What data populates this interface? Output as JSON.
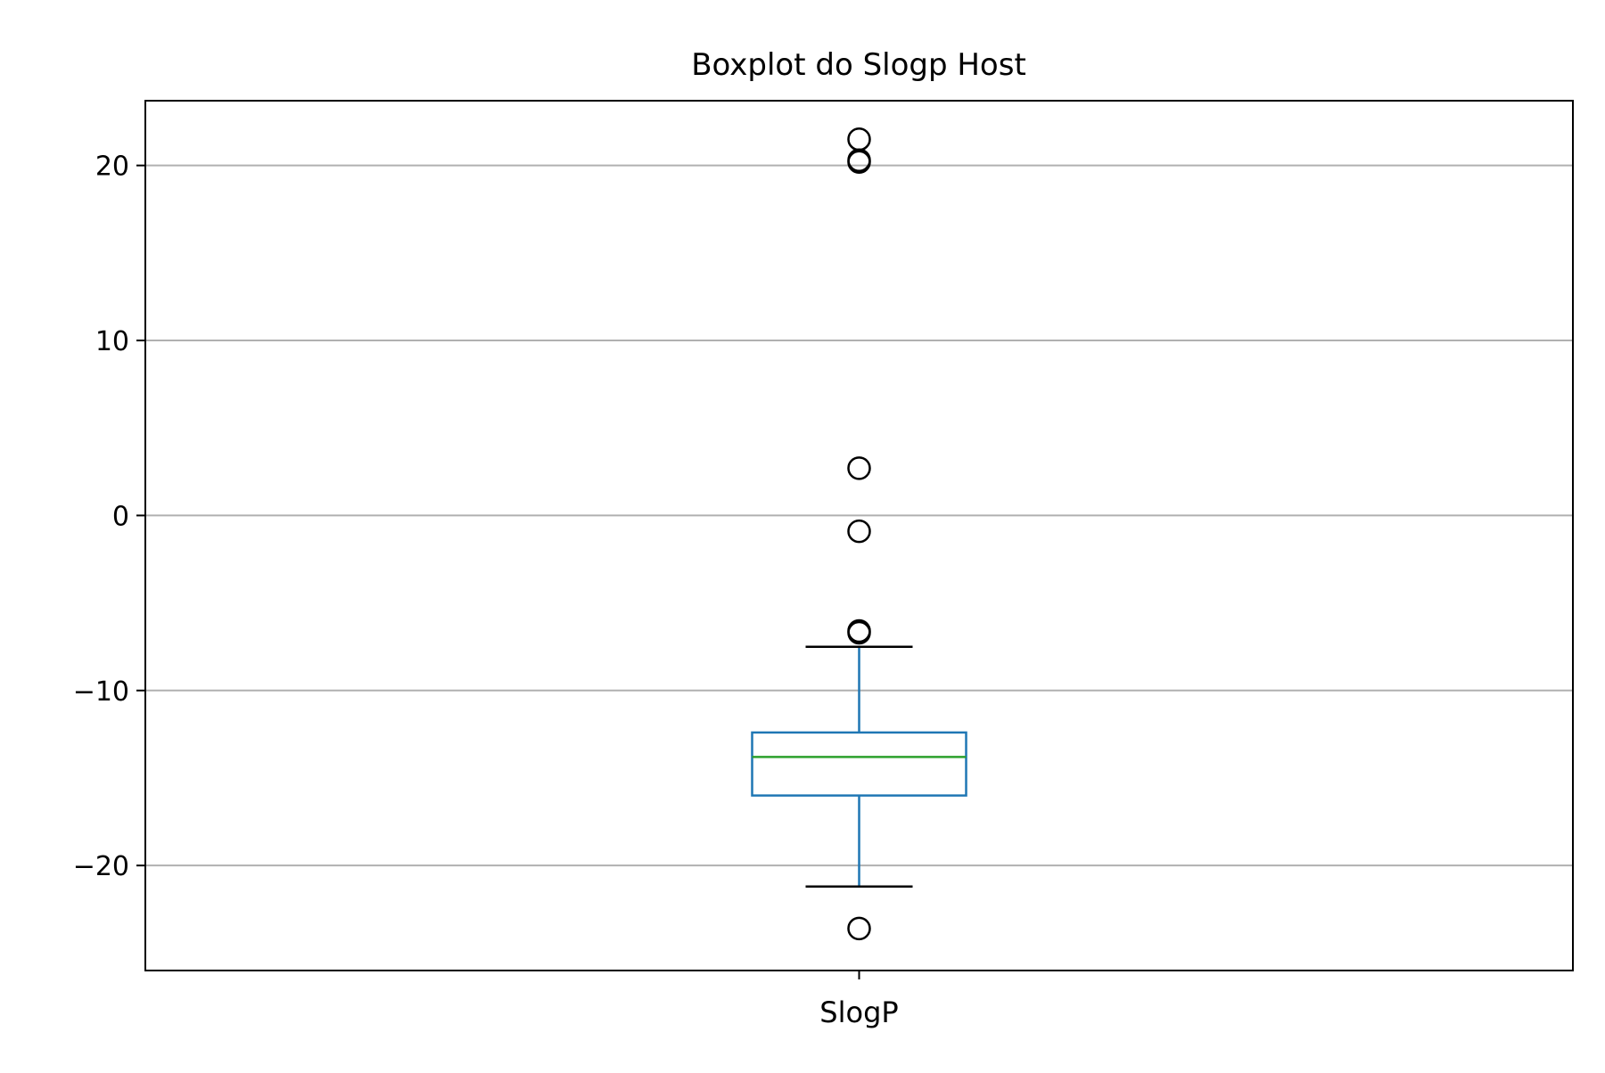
{
  "chart_data": {
    "type": "box",
    "title": "Boxplot do Slogp Host",
    "xlabel": "",
    "ylabel": "",
    "ylim": [
      -26,
      23.7
    ],
    "grid": {
      "x": false,
      "y": true
    },
    "y_ticks": [
      20,
      10,
      0,
      -10,
      -20
    ],
    "y_tick_labels": [
      "20",
      "10",
      "0",
      "−10",
      "−20"
    ],
    "categories": [
      "SlogP"
    ],
    "boxes": [
      {
        "name": "SlogP",
        "whisker_low": -21.2,
        "q1": -16.0,
        "median": -13.8,
        "q3": -12.4,
        "whisker_high": -7.5,
        "outliers": [
          21.5,
          20.3,
          20.2,
          2.7,
          -0.9,
          -6.6,
          -6.7,
          -23.6
        ]
      }
    ],
    "colors": {
      "box": "#1f77b4",
      "median": "#2ca02c",
      "whisker_cap": "#000000",
      "outlier": "#000000",
      "grid": "#b0b0b0",
      "axes": "#000000"
    }
  }
}
